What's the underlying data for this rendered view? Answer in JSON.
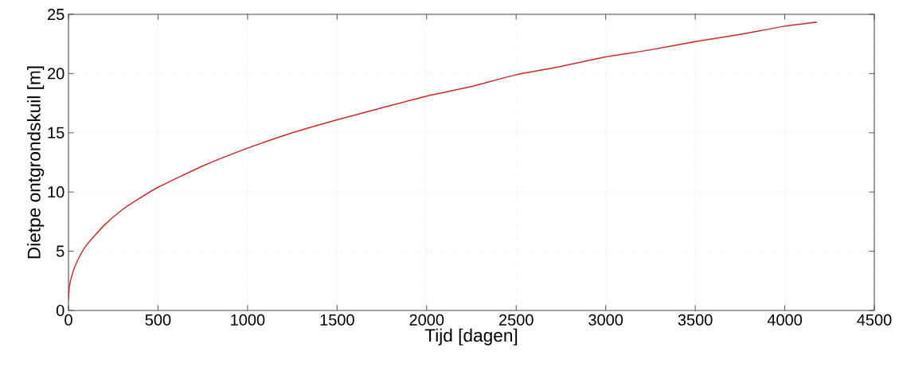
{
  "chart_data": {
    "type": "line",
    "xlabel": "Tijd [dagen]",
    "ylabel": "Dietpe ontgrondskuil [m]",
    "x": [
      0,
      5,
      20,
      50,
      100,
      200,
      300,
      400,
      500,
      750,
      1000,
      1250,
      1500,
      1750,
      2000,
      2250,
      2500,
      2750,
      3000,
      3250,
      3500,
      3750,
      4000,
      4180
    ],
    "values": [
      0.9,
      2,
      3,
      4.2,
      5.5,
      7.2,
      8.5,
      9.5,
      10.4,
      12.2,
      13.7,
      15,
      16.1,
      17.1,
      18.1,
      18.9,
      19.9,
      20.6,
      21.4,
      22.0,
      22.7,
      23.3,
      24.0,
      24.35
    ],
    "color": "#cc2a2a",
    "xlim": [
      0,
      4500
    ],
    "xticks": [
      0,
      500,
      1000,
      1500,
      2000,
      2500,
      3000,
      3500,
      4000,
      4500
    ],
    "ylim": [
      0,
      25
    ],
    "yticks": [
      0,
      5,
      10,
      15,
      20,
      25
    ],
    "grid": true,
    "marker": "none",
    "line_style": "solid"
  }
}
